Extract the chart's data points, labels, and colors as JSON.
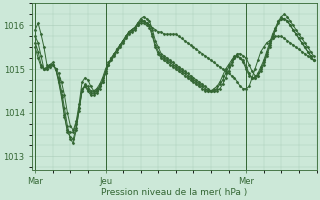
{
  "title": "Pression niveau de la mer( hPa )",
  "bg_color": "#cce8d8",
  "grid_color": "#aaccb8",
  "line_color": "#336633",
  "ylim": [
    1012.7,
    1016.5
  ],
  "yticks": [
    1013,
    1014,
    1015,
    1016
  ],
  "xtick_labels": [
    "Mar",
    "Jeu",
    "Mer"
  ],
  "xtick_positions": [
    0,
    24,
    72
  ],
  "total_points": 96,
  "series": [
    [
      1015.9,
      1016.05,
      1015.8,
      1015.5,
      1015.1,
      1015.05,
      1015.1,
      1015.0,
      1014.9,
      1014.7,
      1014.4,
      1014.0,
      1013.7,
      1013.6,
      1013.8,
      1014.2,
      1014.7,
      1014.8,
      1014.75,
      1014.6,
      1014.5,
      1014.5,
      1014.6,
      1014.7,
      1014.9,
      1015.1,
      1015.2,
      1015.3,
      1015.4,
      1015.5,
      1015.6,
      1015.7,
      1015.8,
      1015.85,
      1015.9,
      1016.0,
      1016.1,
      1016.1,
      1016.05,
      1016.0,
      1015.95,
      1015.9,
      1015.85,
      1015.85,
      1015.8,
      1015.8,
      1015.8,
      1015.8,
      1015.8,
      1015.75,
      1015.7,
      1015.65,
      1015.6,
      1015.55,
      1015.5,
      1015.45,
      1015.4,
      1015.35,
      1015.3,
      1015.25,
      1015.2,
      1015.15,
      1015.1,
      1015.05,
      1015.0,
      1014.95,
      1014.9,
      1014.85,
      1014.8,
      1014.7,
      1014.6,
      1014.55,
      1014.55,
      1014.6,
      1014.8,
      1015.0,
      1015.2,
      1015.4,
      1015.5,
      1015.6,
      1015.65,
      1015.7,
      1015.75,
      1015.75,
      1015.75,
      1015.7,
      1015.65,
      1015.6,
      1015.55,
      1015.5,
      1015.45,
      1015.4,
      1015.35,
      1015.3,
      1015.25,
      1015.2
    ],
    [
      1015.75,
      1015.6,
      1015.3,
      1015.0,
      1015.0,
      1015.05,
      1015.1,
      1015.0,
      1014.8,
      1014.5,
      1014.1,
      1013.7,
      1013.4,
      1013.3,
      1013.6,
      1014.1,
      1014.55,
      1014.6,
      1014.5,
      1014.4,
      1014.4,
      1014.45,
      1014.55,
      1014.7,
      1014.9,
      1015.1,
      1015.25,
      1015.35,
      1015.45,
      1015.55,
      1015.65,
      1015.75,
      1015.85,
      1015.9,
      1015.95,
      1016.05,
      1016.15,
      1016.2,
      1016.15,
      1016.1,
      1015.9,
      1015.65,
      1015.5,
      1015.35,
      1015.3,
      1015.25,
      1015.2,
      1015.15,
      1015.1,
      1015.05,
      1015.0,
      1014.95,
      1014.9,
      1014.85,
      1014.8,
      1014.75,
      1014.7,
      1014.65,
      1014.6,
      1014.55,
      1014.5,
      1014.5,
      1014.5,
      1014.55,
      1014.65,
      1014.8,
      1014.95,
      1015.1,
      1015.25,
      1015.35,
      1015.35,
      1015.3,
      1015.25,
      1015.1,
      1014.95,
      1014.85,
      1014.85,
      1014.95,
      1015.1,
      1015.3,
      1015.5,
      1015.7,
      1015.9,
      1016.1,
      1016.2,
      1016.25,
      1016.2,
      1016.1,
      1016.0,
      1015.9,
      1015.8,
      1015.7,
      1015.6,
      1015.5,
      1015.4,
      1015.3
    ],
    [
      1015.6,
      1015.4,
      1015.1,
      1015.0,
      1015.0,
      1015.1,
      1015.15,
      1015.0,
      1014.75,
      1014.4,
      1013.95,
      1013.55,
      1013.45,
      1013.4,
      1013.65,
      1014.05,
      1014.5,
      1014.6,
      1014.55,
      1014.45,
      1014.45,
      1014.5,
      1014.6,
      1014.75,
      1014.95,
      1015.1,
      1015.25,
      1015.35,
      1015.45,
      1015.55,
      1015.65,
      1015.75,
      1015.85,
      1015.9,
      1015.95,
      1016.05,
      1016.1,
      1016.1,
      1016.05,
      1016.0,
      1015.8,
      1015.55,
      1015.4,
      1015.3,
      1015.25,
      1015.2,
      1015.15,
      1015.1,
      1015.05,
      1015.0,
      1014.95,
      1014.9,
      1014.85,
      1014.8,
      1014.75,
      1014.7,
      1014.65,
      1014.6,
      1014.55,
      1014.5,
      1014.5,
      1014.5,
      1014.55,
      1014.65,
      1014.75,
      1014.9,
      1015.05,
      1015.15,
      1015.25,
      1015.3,
      1015.25,
      1015.2,
      1015.05,
      1014.9,
      1014.8,
      1014.8,
      1014.85,
      1015.0,
      1015.15,
      1015.35,
      1015.55,
      1015.75,
      1015.9,
      1016.05,
      1016.15,
      1016.15,
      1016.1,
      1016.0,
      1015.9,
      1015.8,
      1015.7,
      1015.6,
      1015.5,
      1015.4,
      1015.3,
      1015.2
    ],
    [
      1015.5,
      1015.25,
      1015.05,
      1015.0,
      1015.05,
      1015.1,
      1015.1,
      1015.0,
      1014.7,
      1014.35,
      1013.9,
      1013.6,
      1013.55,
      1013.55,
      1013.75,
      1014.1,
      1014.5,
      1014.65,
      1014.6,
      1014.5,
      1014.5,
      1014.55,
      1014.65,
      1014.8,
      1015.0,
      1015.15,
      1015.25,
      1015.35,
      1015.45,
      1015.55,
      1015.65,
      1015.75,
      1015.85,
      1015.9,
      1015.95,
      1016.0,
      1016.05,
      1016.05,
      1016.0,
      1015.95,
      1015.75,
      1015.5,
      1015.35,
      1015.25,
      1015.2,
      1015.15,
      1015.1,
      1015.05,
      1015.0,
      1014.95,
      1014.9,
      1014.85,
      1014.8,
      1014.75,
      1014.7,
      1014.65,
      1014.6,
      1014.55,
      1014.5,
      1014.5,
      1014.5,
      1014.55,
      1014.6,
      1014.7,
      1014.85,
      1015.0,
      1015.1,
      1015.2,
      1015.3,
      1015.3,
      1015.25,
      1015.15,
      1015.0,
      1014.85,
      1014.8,
      1014.8,
      1014.9,
      1015.05,
      1015.2,
      1015.4,
      1015.6,
      1015.8,
      1015.95,
      1016.1,
      1016.15,
      1016.15,
      1016.1,
      1016.0,
      1015.9,
      1015.8,
      1015.7,
      1015.6,
      1015.5,
      1015.4,
      1015.3,
      1015.2
    ]
  ]
}
